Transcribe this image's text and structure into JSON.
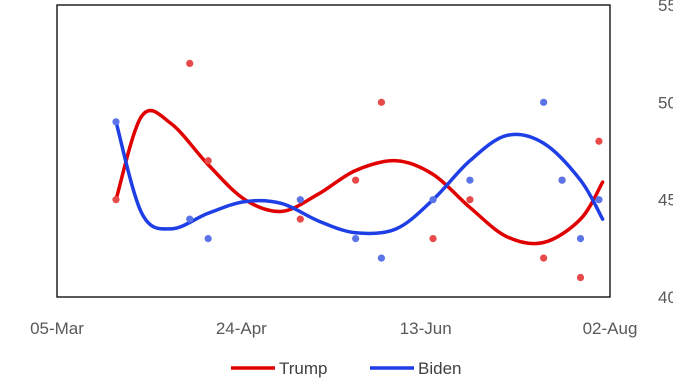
{
  "chart_data": {
    "type": "scatter",
    "x_axis": {
      "kind": "date",
      "ticks": [
        "2020-03-05",
        "2020-04-24",
        "2020-06-13",
        "2020-08-02"
      ],
      "tick_labels": [
        "05-Mar",
        "24-Apr",
        "13-Jun",
        "02-Aug"
      ],
      "range": [
        "2020-03-05",
        "2020-08-02"
      ]
    },
    "y_axis": {
      "position": "right",
      "range": [
        40,
        55
      ],
      "ticks": [
        40,
        45,
        50,
        55
      ],
      "tick_labels": [
        "40",
        "45",
        "50",
        "55"
      ]
    },
    "grid": false,
    "legend_position": "bottom",
    "series": [
      {
        "name": "Trump",
        "color": "#e00000",
        "marker_color": "#e84a4a",
        "points": [
          [
            "2020-03-21",
            45
          ],
          [
            "2020-04-10",
            52
          ],
          [
            "2020-04-15",
            47
          ],
          [
            "2020-05-10",
            44
          ],
          [
            "2020-05-25",
            46
          ],
          [
            "2020-06-01",
            50
          ],
          [
            "2020-06-15",
            43
          ],
          [
            "2020-06-25",
            45
          ],
          [
            "2020-07-15",
            42
          ],
          [
            "2020-07-20",
            46
          ],
          [
            "2020-07-25",
            41
          ],
          [
            "2020-07-30",
            48
          ]
        ],
        "trend": [
          [
            "2020-03-21",
            45.0
          ],
          [
            "2020-03-28",
            49.3
          ],
          [
            "2020-04-05",
            48.9
          ],
          [
            "2020-04-15",
            46.8
          ],
          [
            "2020-04-25",
            45.0
          ],
          [
            "2020-05-05",
            44.4
          ],
          [
            "2020-05-15",
            45.3
          ],
          [
            "2020-05-25",
            46.5
          ],
          [
            "2020-06-05",
            47.0
          ],
          [
            "2020-06-15",
            46.3
          ],
          [
            "2020-06-25",
            44.6
          ],
          [
            "2020-07-05",
            43.1
          ],
          [
            "2020-07-15",
            42.8
          ],
          [
            "2020-07-25",
            44.0
          ],
          [
            "2020-07-31",
            45.9
          ]
        ]
      },
      {
        "name": "Biden",
        "color": "#1e3fe6",
        "marker_color": "#5b74e8",
        "points": [
          [
            "2020-03-21",
            49
          ],
          [
            "2020-04-10",
            44
          ],
          [
            "2020-04-15",
            43
          ],
          [
            "2020-05-10",
            45
          ],
          [
            "2020-05-25",
            43
          ],
          [
            "2020-06-01",
            42
          ],
          [
            "2020-06-15",
            45
          ],
          [
            "2020-06-25",
            46
          ],
          [
            "2020-07-15",
            50
          ],
          [
            "2020-07-20",
            46
          ],
          [
            "2020-07-25",
            43
          ],
          [
            "2020-07-30",
            45
          ]
        ],
        "trend": [
          [
            "2020-03-21",
            49.0
          ],
          [
            "2020-03-28",
            44.3
          ],
          [
            "2020-04-05",
            43.5
          ],
          [
            "2020-04-15",
            44.3
          ],
          [
            "2020-04-25",
            44.9
          ],
          [
            "2020-05-05",
            44.8
          ],
          [
            "2020-05-15",
            43.9
          ],
          [
            "2020-05-25",
            43.3
          ],
          [
            "2020-06-05",
            43.5
          ],
          [
            "2020-06-15",
            45.0
          ],
          [
            "2020-06-25",
            47.0
          ],
          [
            "2020-07-05",
            48.3
          ],
          [
            "2020-07-15",
            47.9
          ],
          [
            "2020-07-25",
            46.0
          ],
          [
            "2020-07-31",
            44.0
          ]
        ]
      }
    ]
  }
}
